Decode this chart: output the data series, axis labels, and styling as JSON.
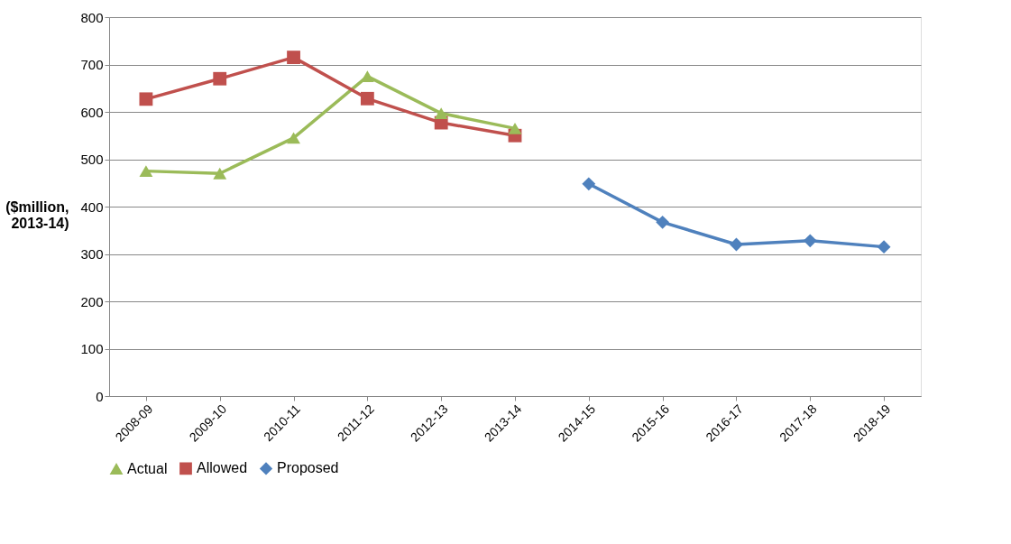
{
  "chart_data": {
    "type": "line",
    "ylabel": "($million, 2013-14)",
    "categories": [
      "2008-09",
      "2009-10",
      "2010-11",
      "2011-12",
      "2012-13",
      "2013-14",
      "2014-15",
      "2015-16",
      "2016-17",
      "2017-18",
      "2018-19"
    ],
    "series": [
      {
        "name": "Actual",
        "color": "#9bbb59",
        "marker": "triangle",
        "values": [
          475,
          470,
          545,
          675,
          597,
          565,
          null,
          null,
          null,
          null,
          null
        ]
      },
      {
        "name": "Allowed",
        "color": "#c0504d",
        "marker": "square",
        "values": [
          627,
          670,
          715,
          628,
          577,
          550,
          null,
          null,
          null,
          null,
          null
        ]
      },
      {
        "name": "Proposed",
        "color": "#4f81bd",
        "marker": "diamond",
        "values": [
          null,
          null,
          null,
          null,
          null,
          null,
          448,
          367,
          320,
          328,
          315
        ]
      }
    ],
    "ylim": [
      0,
      800
    ],
    "yticks": [
      0,
      100,
      200,
      300,
      400,
      500,
      600,
      700,
      800
    ],
    "grid": "y",
    "legend": "bottom",
    "line_style": "solid"
  }
}
